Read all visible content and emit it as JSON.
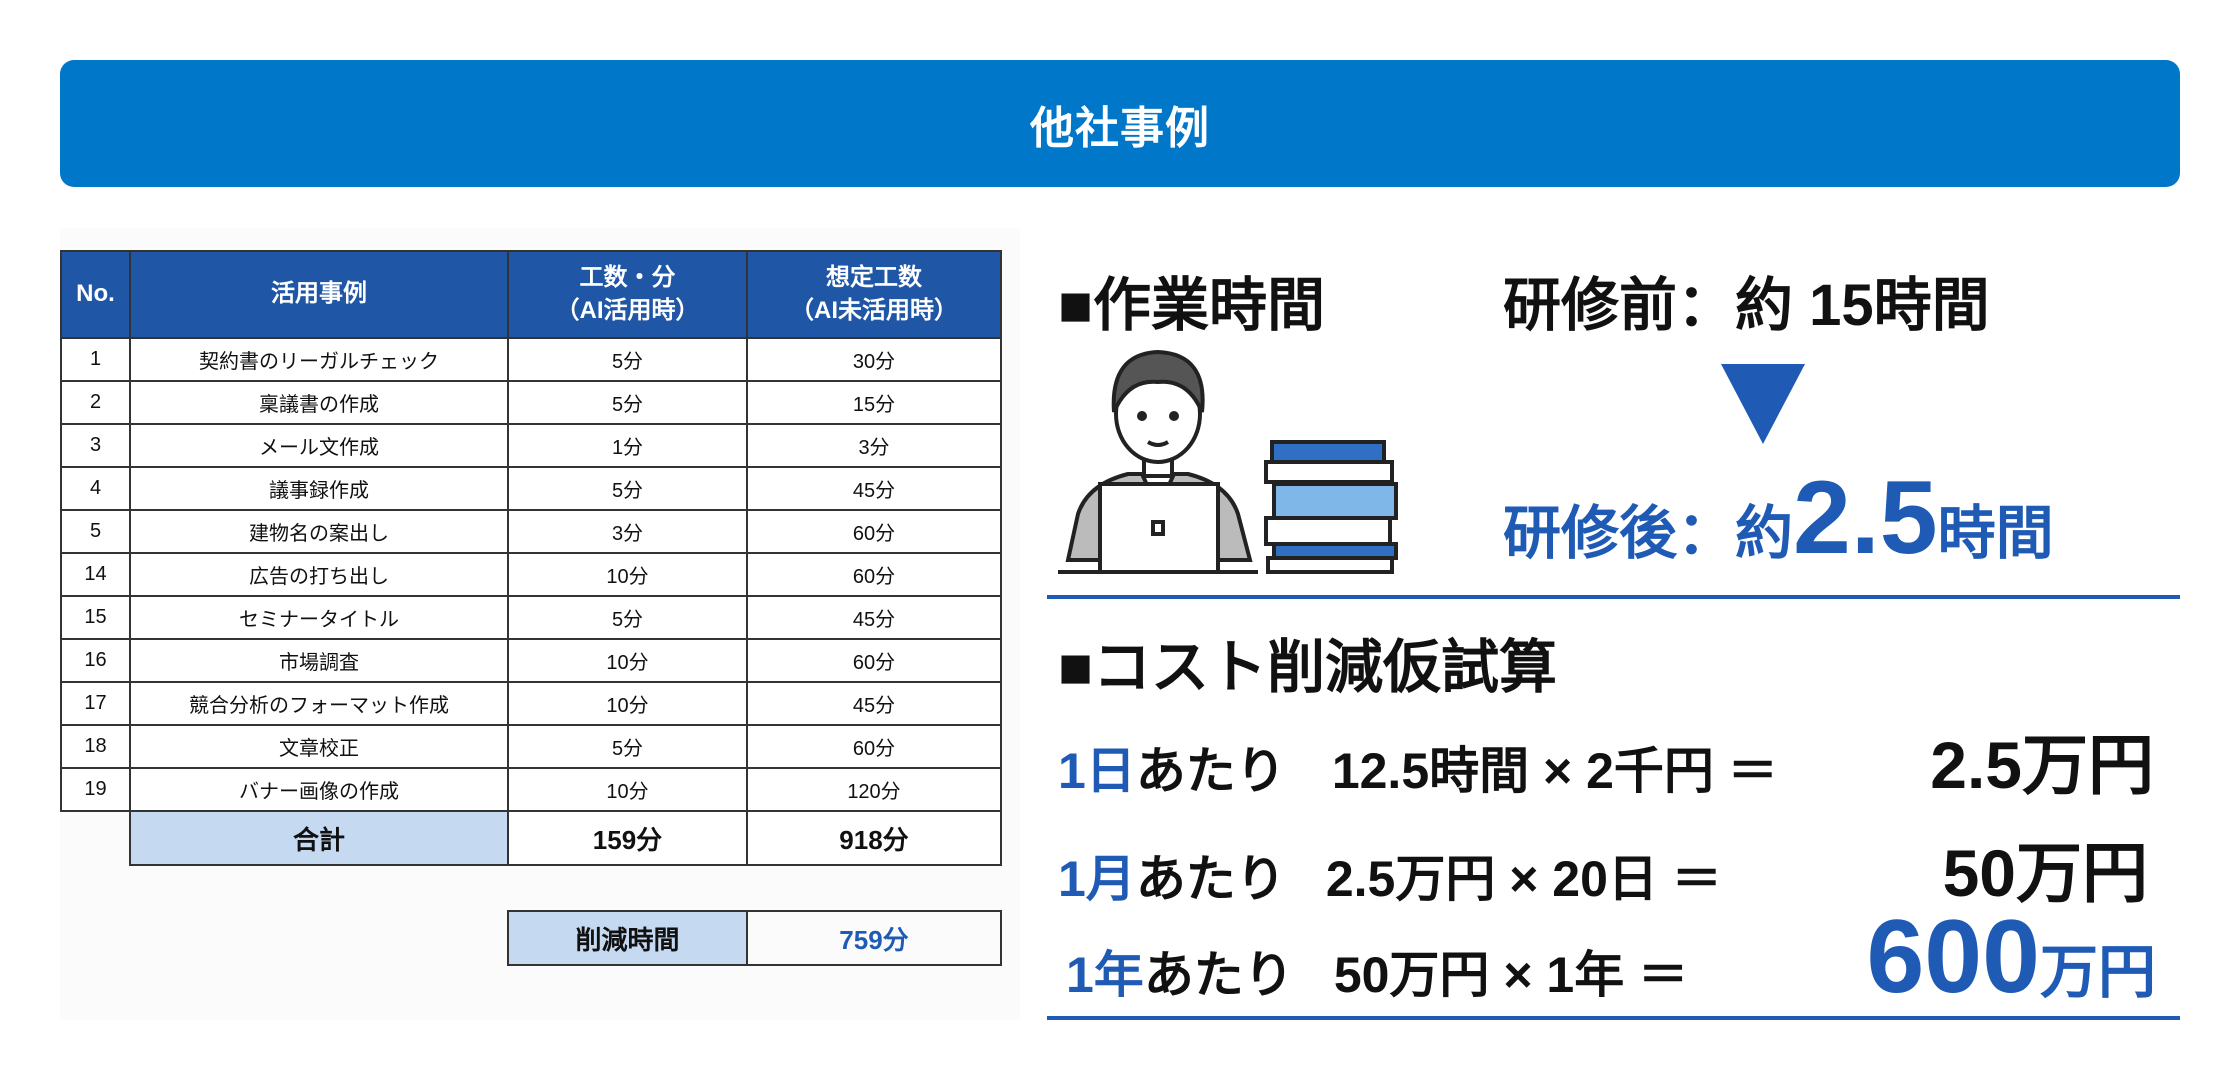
{
  "banner": {
    "title": "他社事例"
  },
  "table": {
    "headers": {
      "no": "No.",
      "case": "活用事例",
      "ai_time_1": "工数・分",
      "ai_time_2": "（AI活用時）",
      "est_1": "想定工数",
      "est_2": "（AI未活用時）"
    },
    "rows": [
      {
        "no": "1",
        "case": "契約書のリーガルチェック",
        "ai": "5分",
        "est": "30分"
      },
      {
        "no": "2",
        "case": "稟議書の作成",
        "ai": "5分",
        "est": "15分"
      },
      {
        "no": "3",
        "case": "メール文作成",
        "ai": "1分",
        "est": "3分"
      },
      {
        "no": "4",
        "case": "議事録作成",
        "ai": "5分",
        "est": "45分"
      },
      {
        "no": "5",
        "case": "建物名の案出し",
        "ai": "3分",
        "est": "60分"
      },
      {
        "no": "14",
        "case": "広告の打ち出し",
        "ai": "10分",
        "est": "60分"
      },
      {
        "no": "15",
        "case": "セミナータイトル",
        "ai": "5分",
        "est": "45分"
      },
      {
        "no": "16",
        "case": "市場調査",
        "ai": "10分",
        "est": "60分"
      },
      {
        "no": "17",
        "case": "競合分析のフォーマット作成",
        "ai": "10分",
        "est": "45分"
      },
      {
        "no": "18",
        "case": "文章校正",
        "ai": "5分",
        "est": "60分"
      },
      {
        "no": "19",
        "case": "バナー画像の作成",
        "ai": "10分",
        "est": "120分"
      }
    ],
    "total": {
      "label": "合計",
      "ai": "159分",
      "est": "918分"
    },
    "reduction": {
      "label": "削減時間",
      "value": "759分"
    }
  },
  "work_time": {
    "heading": "■作業時間",
    "before": "研修前：約 15時間",
    "arrow_icon": "down-triangle",
    "after_label": "研修後：約",
    "after_value": "2.5",
    "after_unit": "時間"
  },
  "cost": {
    "heading": "■コスト削減仮試算",
    "rows": [
      {
        "period": "1日",
        "suffix": "あたり",
        "formula": "12.5時間 × 2千円 ＝",
        "result": "2.5万円"
      },
      {
        "period": "1月",
        "suffix": "あたり",
        "formula": "2.5万円 × 20日 ＝",
        "result": "50万円"
      },
      {
        "period": "1年",
        "suffix": "あたり",
        "formula": "50万円 × 1年 ＝",
        "result_num": "600",
        "result_unit": "万円"
      }
    ]
  },
  "colors": {
    "banner": "#0077c8",
    "table_header": "#1f56a5",
    "highlight_cell": "#c5d9f1",
    "accent_blue": "#1f5bb5"
  }
}
